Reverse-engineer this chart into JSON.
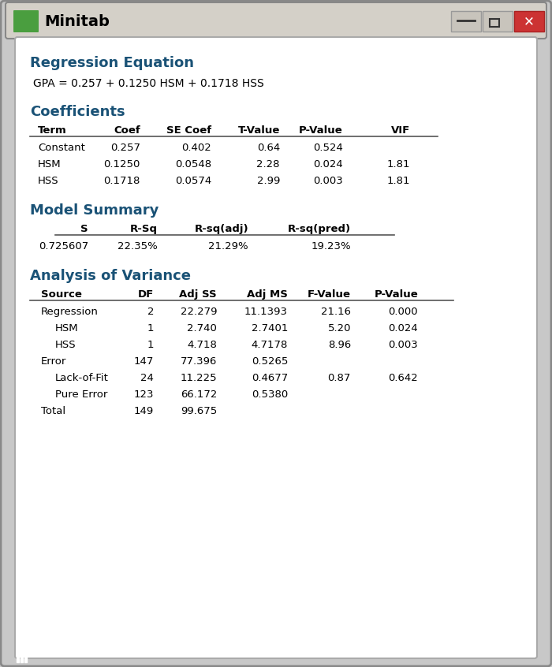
{
  "title_bar_color": "#d4d0c8",
  "title_bar_text": "Minitab",
  "title_bar_font_color": "#000000",
  "window_bg": "#c8c8c8",
  "content_bg": "#ffffff",
  "header_color": "#1a5276",
  "body_color": "#000000",
  "icon_green": "#4a9e3f",
  "reg_eq_title": "Regression Equation",
  "reg_eq_formula": "GPA = 0.257 + 0.1250 HSM + 0.1718 HSS",
  "coef_title": "Coefficients",
  "coef_headers": [
    "Term",
    "Coef",
    "SE Coef",
    "T-Value",
    "P-Value",
    "VIF"
  ],
  "coef_rows": [
    [
      "Constant",
      "0.257",
      "0.402",
      "0.64",
      "0.524",
      ""
    ],
    [
      "HSM",
      "0.1250",
      "0.0548",
      "2.28",
      "0.024",
      "1.81"
    ],
    [
      "HSS",
      "0.1718",
      "0.0574",
      "2.99",
      "0.003",
      "1.81"
    ]
  ],
  "model_title": "Model Summary",
  "model_headers": [
    "S",
    "R-Sq",
    "R-sq(adj)",
    "R-sq(pred)"
  ],
  "model_rows": [
    [
      "0.725607",
      "22.35%",
      "21.29%",
      "19.23%"
    ]
  ],
  "anova_title": "Analysis of Variance",
  "anova_headers": [
    "Source",
    "DF",
    "Adj SS",
    "Adj MS",
    "F-Value",
    "P-Value"
  ],
  "anova_rows": [
    [
      "Regression",
      "2",
      "22.279",
      "11.1393",
      "21.16",
      "0.000"
    ],
    [
      "HSM",
      "1",
      "2.740",
      "2.7401",
      "5.20",
      "0.024"
    ],
    [
      "HSS",
      "1",
      "4.718",
      "4.7178",
      "8.96",
      "0.003"
    ],
    [
      "Error",
      "147",
      "77.396",
      "0.5265",
      "",
      ""
    ],
    [
      "Lack-of-Fit",
      "24",
      "11.225",
      "0.4677",
      "0.87",
      "0.642"
    ],
    [
      "Pure Error",
      "123",
      "66.172",
      "0.5380",
      "",
      ""
    ],
    [
      "Total",
      "149",
      "99.675",
      "",
      "",
      ""
    ]
  ],
  "anova_indent": [
    false,
    true,
    true,
    false,
    true,
    true,
    false
  ]
}
